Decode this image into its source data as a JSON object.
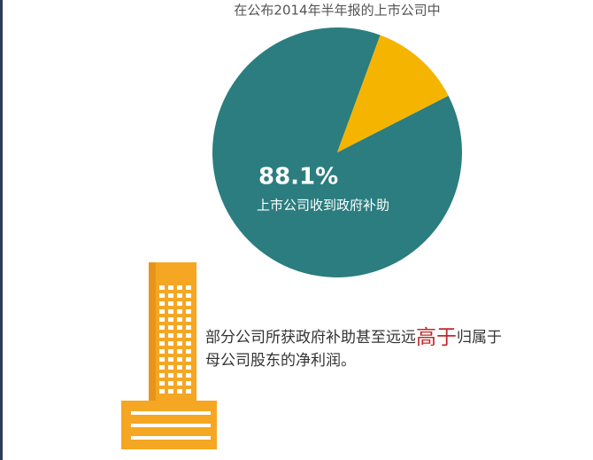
{
  "chart_data": {
    "type": "pie",
    "title": "在公布2014年半年报的上市公司中",
    "categories": [
      "上市公司收到政府补助",
      null
    ],
    "values": [
      88.1,
      11.9
    ],
    "value_labels": [
      "88.1%",
      null
    ],
    "colors": [
      "#2b7d7f",
      "#f5b400"
    ],
    "annotation": [
      "部分公司所获政府补助甚至远远",
      "高于",
      "归属于",
      "母公司股东的净利润。"
    ]
  }
}
